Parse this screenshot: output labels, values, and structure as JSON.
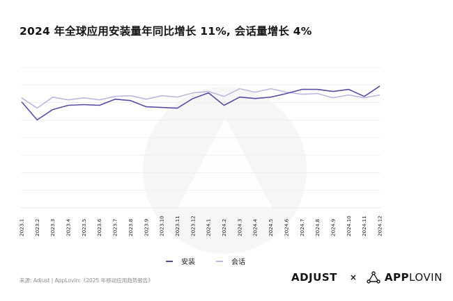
{
  "title": "2024 年全球应用安装量年同比增长 11%, 会话量增长 4%",
  "legend": [
    {
      "label": "安装",
      "color": "#5a4aa6"
    },
    {
      "label": "会话",
      "color": "#bdb8e0"
    }
  ],
  "source": "来源: Adjust | AppLovin:《2025 年移动应用趋势报告》",
  "brands": {
    "left": "ADJUST",
    "separator": "×",
    "right_bold": "APP",
    "right_light": "LOVIN",
    "right_icon": "applovin-triangle-icon"
  },
  "chart_data": {
    "type": "line",
    "title": "2024 年全球应用安装量年同比增长 11%, 会话量增长 4%",
    "xlabel": "",
    "ylabel": "",
    "ylim": [
      0,
      8
    ],
    "grid": true,
    "y_tick_labels_shown": false,
    "legend_position": "bottom",
    "categories": [
      "2023.1",
      "2023.2",
      "2023.3",
      "2023.4",
      "2023.5",
      "2023.6",
      "2023.7",
      "2023.8",
      "2023.9",
      "2023.10",
      "2023.11",
      "2023.12",
      "2024.1",
      "2024.2",
      "2024.3",
      "2024.4",
      "2024.5",
      "2024.6",
      "2024.7",
      "2024.8",
      "2024.9",
      "2024.10",
      "2024.11",
      "2024.12"
    ],
    "series": [
      {
        "name": "安装",
        "color": "#5a4aa6",
        "values": [
          6.04,
          5.01,
          5.6,
          5.84,
          5.88,
          5.84,
          6.19,
          6.11,
          5.76,
          5.72,
          5.68,
          6.23,
          6.55,
          5.84,
          6.31,
          6.23,
          6.31,
          6.51,
          6.75,
          6.75,
          6.63,
          6.75,
          6.35,
          6.94
        ]
      },
      {
        "name": "会话",
        "color": "#bdb8e0",
        "values": [
          6.27,
          5.68,
          6.31,
          6.15,
          6.27,
          6.15,
          6.35,
          6.39,
          6.19,
          6.39,
          6.31,
          6.55,
          6.63,
          6.35,
          6.79,
          6.59,
          6.79,
          6.59,
          6.47,
          6.51,
          6.27,
          6.43,
          6.27,
          6.43
        ]
      }
    ]
  }
}
